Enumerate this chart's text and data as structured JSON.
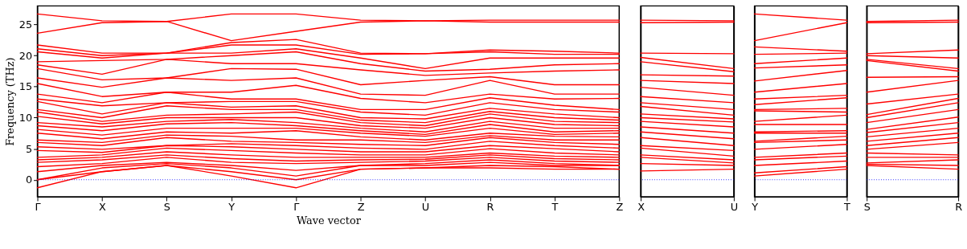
{
  "chart_data": [
    {
      "type": "line",
      "xlabel": "Wave vector",
      "ylabel": "Frequency (THz)",
      "ylim": [
        -2.75,
        28
      ],
      "yticks": [
        0,
        5,
        10,
        15,
        20,
        25
      ],
      "categories": [
        "Γ",
        "X",
        "S",
        "Y",
        "Γ",
        "Z",
        "U",
        "R",
        "T",
        "Z"
      ],
      "grid": false,
      "line_style": "solid",
      "ref_lines": [
        {
          "axis": "y",
          "value": 0,
          "color": "#0000ff",
          "line_style": "dotted"
        }
      ],
      "series": [
        {
          "color": "#ff0000",
          "values": [
            -1.3,
            1.3,
            2.3,
            0.6,
            -1.3,
            1.7,
            1.9,
            1.9,
            1.7,
            1.7
          ]
        },
        {
          "color": "#ff0000",
          "values": [
            0,
            1.3,
            2.3,
            1.3,
            0,
            1.7,
            1.9,
            2.3,
            2.1,
            1.7
          ]
        },
        {
          "color": "#ff0000",
          "values": [
            0,
            1.9,
            2.6,
            1.9,
            0.6,
            2.3,
            2.3,
            2.8,
            2.3,
            2.3
          ]
        },
        {
          "color": "#ff0000",
          "values": [
            1.3,
            2.3,
            2.8,
            2.3,
            1.5,
            2.3,
            2.6,
            3.2,
            2.6,
            2.3
          ]
        },
        {
          "color": "#ff0000",
          "values": [
            2.1,
            2.6,
            3.6,
            2.8,
            2.6,
            2.8,
            3.0,
            3.6,
            3.0,
            2.8
          ]
        },
        {
          "color": "#ff0000",
          "values": [
            2.8,
            3.2,
            4.0,
            3.4,
            3.0,
            3.2,
            3.3,
            4.0,
            3.4,
            3.2
          ]
        },
        {
          "color": "#ff0000",
          "values": [
            3.2,
            3.6,
            4.5,
            4.0,
            3.6,
            3.6,
            3.6,
            4.3,
            3.8,
            3.6
          ]
        },
        {
          "color": "#ff0000",
          "values": [
            3.6,
            4.0,
            5.1,
            4.7,
            4.3,
            4.0,
            4.0,
            5.0,
            4.3,
            4.0
          ]
        },
        {
          "color": "#ff0000",
          "values": [
            4.7,
            4.4,
            5.5,
            5.3,
            4.9,
            4.5,
            4.5,
            5.5,
            5.0,
            4.5
          ]
        },
        {
          "color": "#ff0000",
          "values": [
            5.3,
            4.9,
            5.5,
            5.8,
            5.5,
            5.1,
            4.9,
            6.2,
            5.5,
            5.1
          ]
        },
        {
          "color": "#ff0000",
          "values": [
            6.0,
            5.5,
            6.8,
            6.2,
            6.0,
            5.7,
            5.5,
            6.8,
            6.0,
            5.7
          ]
        },
        {
          "color": "#ff0000",
          "values": [
            6.4,
            6.0,
            7.2,
            7.0,
            6.4,
            6.4,
            6.0,
            7.1,
            6.4,
            6.4
          ]
        },
        {
          "color": "#ff0000",
          "values": [
            7.5,
            6.6,
            7.7,
            7.5,
            7.9,
            6.9,
            6.4,
            7.5,
            7.0,
            6.9
          ]
        },
        {
          "color": "#ff0000",
          "values": [
            8.1,
            7.2,
            8.3,
            8.3,
            8.3,
            7.5,
            7.0,
            8.3,
            7.3,
            7.5
          ]
        },
        {
          "color": "#ff0000",
          "values": [
            8.7,
            7.9,
            9.0,
            9.2,
            8.7,
            7.9,
            7.3,
            8.9,
            7.7,
            7.9
          ]
        },
        {
          "color": "#ff0000",
          "values": [
            9.2,
            8.5,
            9.4,
            9.7,
            9.2,
            8.3,
            7.7,
            9.4,
            8.3,
            8.3
          ]
        },
        {
          "color": "#ff0000",
          "values": [
            10.2,
            9.0,
            10.0,
            10.0,
            10.0,
            8.7,
            8.3,
            10.0,
            8.9,
            8.7
          ]
        },
        {
          "color": "#ff0000",
          "values": [
            10.9,
            9.4,
            10.4,
            10.6,
            10.9,
            9.2,
            8.7,
            10.6,
            9.4,
            9.2
          ]
        },
        {
          "color": "#ff0000",
          "values": [
            11.3,
            10.0,
            11.9,
            11.3,
            11.3,
            9.6,
            9.2,
            11.0,
            10.0,
            9.6
          ]
        },
        {
          "color": "#ff0000",
          "values": [
            12.6,
            10.6,
            12.4,
            11.7,
            11.9,
            10.0,
            9.8,
            11.5,
            10.6,
            10.0
          ]
        },
        {
          "color": "#ff0000",
          "values": [
            13.0,
            11.9,
            12.4,
            12.6,
            12.6,
            10.9,
            10.4,
            12.4,
            11.3,
            10.9
          ]
        },
        {
          "color": "#ff0000",
          "values": [
            13.8,
            12.4,
            14.1,
            13.0,
            13.0,
            11.3,
            11.3,
            13.2,
            12.0,
            11.3
          ]
        },
        {
          "color": "#ff0000",
          "values": [
            15.5,
            13.4,
            14.1,
            14.1,
            15.2,
            13.1,
            12.4,
            13.8,
            13.0,
            13.1
          ]
        },
        {
          "color": "#ff0000",
          "values": [
            16.4,
            14.9,
            16.4,
            16.0,
            16.4,
            13.8,
            13.6,
            16.0,
            13.8,
            13.8
          ]
        },
        {
          "color": "#ff0000",
          "values": [
            17.9,
            16.1,
            16.4,
            17.9,
            17.8,
            15.3,
            16.0,
            16.6,
            15.3,
            15.3
          ]
        },
        {
          "color": "#ff0000",
          "values": [
            18.5,
            17.0,
            19.4,
            18.7,
            18.7,
            17.7,
            16.8,
            17.2,
            17.5,
            17.7
          ]
        },
        {
          "color": "#ff0000",
          "values": [
            19.0,
            19.2,
            19.4,
            20.0,
            20.6,
            18.7,
            17.5,
            17.8,
            18.5,
            18.7
          ]
        },
        {
          "color": "#ff0000",
          "values": [
            20.6,
            19.6,
            20.4,
            20.4,
            21.1,
            19.6,
            17.9,
            19.6,
            19.6,
            19.6
          ]
        },
        {
          "color": "#ff0000",
          "values": [
            21.1,
            20.0,
            20.4,
            21.7,
            21.7,
            20.2,
            20.3,
            20.6,
            20.2,
            20.2
          ]
        },
        {
          "color": "#ff0000",
          "values": [
            21.7,
            20.4,
            20.4,
            22.1,
            22.6,
            20.4,
            20.3,
            20.9,
            20.7,
            20.4
          ]
        },
        {
          "color": "#ff0000",
          "values": [
            23.6,
            25.3,
            25.5,
            22.4,
            23.9,
            25.4,
            25.6,
            25.4,
            25.4,
            25.4
          ]
        },
        {
          "color": "#ff0000",
          "values": [
            26.7,
            25.6,
            25.5,
            26.7,
            26.7,
            25.7,
            25.6,
            25.7,
            25.7,
            25.7
          ]
        }
      ]
    },
    {
      "type": "line",
      "categories": [
        "X",
        "U"
      ],
      "ylim": [
        -2.75,
        28
      ],
      "yticks": [
        0,
        5,
        10,
        15,
        20,
        25
      ],
      "tick_labels": "x",
      "grid": "x",
      "line_style": "solid",
      "ref_lines": [
        {
          "axis": "y",
          "value": 0,
          "color": "#0000ff",
          "line_style": "dotted"
        }
      ],
      "series": [
        {
          "color": "#ff0000",
          "values": [
            1.4,
            1.7
          ]
        },
        {
          "color": "#ff0000",
          "values": [
            2.6,
            2.3
          ]
        },
        {
          "color": "#ff0000",
          "values": [
            3.6,
            2.7
          ]
        },
        {
          "color": "#ff0000",
          "values": [
            4.0,
            3.2
          ]
        },
        {
          "color": "#ff0000",
          "values": [
            5.1,
            3.8
          ]
        },
        {
          "color": "#ff0000",
          "values": [
            5.5,
            4.7
          ]
        },
        {
          "color": "#ff0000",
          "values": [
            6.8,
            5.5
          ]
        },
        {
          "color": "#ff0000",
          "values": [
            7.7,
            6.6
          ]
        },
        {
          "color": "#ff0000",
          "values": [
            8.5,
            7.5
          ]
        },
        {
          "color": "#ff0000",
          "values": [
            9.4,
            8.5
          ]
        },
        {
          "color": "#ff0000",
          "values": [
            10.0,
            9.3
          ]
        },
        {
          "color": "#ff0000",
          "values": [
            10.6,
            9.8
          ]
        },
        {
          "color": "#ff0000",
          "values": [
            11.8,
            10.4
          ]
        },
        {
          "color": "#ff0000",
          "values": [
            12.4,
            11.3
          ]
        },
        {
          "color": "#ff0000",
          "values": [
            13.4,
            12.4
          ]
        },
        {
          "color": "#ff0000",
          "values": [
            14.9,
            13.6
          ]
        },
        {
          "color": "#ff0000",
          "values": [
            16.0,
            15.5
          ]
        },
        {
          "color": "#ff0000",
          "values": [
            16.9,
            16.7
          ]
        },
        {
          "color": "#ff0000",
          "values": [
            19.0,
            17.4
          ]
        },
        {
          "color": "#ff0000",
          "values": [
            19.7,
            17.9
          ]
        },
        {
          "color": "#ff0000",
          "values": [
            20.4,
            20.3
          ]
        },
        {
          "color": "#ff0000",
          "values": [
            25.3,
            25.4
          ]
        },
        {
          "color": "#ff0000",
          "values": [
            25.7,
            25.6
          ]
        }
      ]
    },
    {
      "type": "line",
      "categories": [
        "Y",
        "T"
      ],
      "ylim": [
        -2.75,
        28
      ],
      "yticks": [
        0,
        5,
        10,
        15,
        20,
        25
      ],
      "tick_labels": "x",
      "grid": "x",
      "line_style": "solid",
      "ref_lines": [
        {
          "axis": "y",
          "value": 0,
          "color": "#0000ff",
          "line_style": "dotted"
        }
      ],
      "series": [
        {
          "color": "#ff0000",
          "values": [
            0.6,
            1.7
          ]
        },
        {
          "color": "#ff0000",
          "values": [
            1.1,
            2.1
          ]
        },
        {
          "color": "#ff0000",
          "values": [
            2.3,
            3.0
          ]
        },
        {
          "color": "#ff0000",
          "values": [
            3.2,
            3.8
          ]
        },
        {
          "color": "#ff0000",
          "values": [
            3.6,
            4.3
          ]
        },
        {
          "color": "#ff0000",
          "values": [
            4.9,
            5.7
          ]
        },
        {
          "color": "#ff0000",
          "values": [
            6.0,
            6.4
          ]
        },
        {
          "color": "#ff0000",
          "values": [
            6.2,
            7.0
          ]
        },
        {
          "color": "#ff0000",
          "values": [
            7.5,
            7.5
          ]
        },
        {
          "color": "#ff0000",
          "values": [
            7.7,
            7.9
          ]
        },
        {
          "color": "#ff0000",
          "values": [
            8.9,
            8.9
          ]
        },
        {
          "color": "#ff0000",
          "values": [
            9.4,
            10.4
          ]
        },
        {
          "color": "#ff0000",
          "values": [
            11.1,
            10.9
          ]
        },
        {
          "color": "#ff0000",
          "values": [
            11.3,
            11.5
          ]
        },
        {
          "color": "#ff0000",
          "values": [
            12.1,
            13.2
          ]
        },
        {
          "color": "#ff0000",
          "values": [
            13.0,
            13.6
          ]
        },
        {
          "color": "#ff0000",
          "values": [
            14.1,
            15.5
          ]
        },
        {
          "color": "#ff0000",
          "values": [
            15.9,
            17.6
          ]
        },
        {
          "color": "#ff0000",
          "values": [
            18.0,
            18.5
          ]
        },
        {
          "color": "#ff0000",
          "values": [
            18.7,
            19.6
          ]
        },
        {
          "color": "#ff0000",
          "values": [
            20.2,
            20.4
          ]
        },
        {
          "color": "#ff0000",
          "values": [
            21.4,
            20.7
          ]
        },
        {
          "color": "#ff0000",
          "values": [
            22.4,
            25.3
          ]
        },
        {
          "color": "#ff0000",
          "values": [
            26.7,
            25.7
          ]
        }
      ]
    },
    {
      "type": "line",
      "categories": [
        "S",
        "R"
      ],
      "ylim": [
        -2.75,
        28
      ],
      "yticks": [
        0,
        5,
        10,
        15,
        20,
        25
      ],
      "tick_labels": "x",
      "grid": "x",
      "line_style": "solid",
      "ref_lines": [
        {
          "axis": "y",
          "value": 0,
          "color": "#0000ff",
          "line_style": "dotted"
        }
      ],
      "series": [
        {
          "color": "#ff0000",
          "values": [
            2.3,
            1.7
          ]
        },
        {
          "color": "#ff0000",
          "values": [
            2.5,
            2.3
          ]
        },
        {
          "color": "#ff0000",
          "values": [
            2.7,
            3.2
          ]
        },
        {
          "color": "#ff0000",
          "values": [
            3.6,
            3.6
          ]
        },
        {
          "color": "#ff0000",
          "values": [
            4.3,
            4.0
          ]
        },
        {
          "color": "#ff0000",
          "values": [
            4.9,
            6.0
          ]
        },
        {
          "color": "#ff0000",
          "values": [
            5.5,
            6.8
          ]
        },
        {
          "color": "#ff0000",
          "values": [
            6.2,
            7.5
          ]
        },
        {
          "color": "#ff0000",
          "values": [
            6.9,
            8.3
          ]
        },
        {
          "color": "#ff0000",
          "values": [
            7.6,
            9.2
          ]
        },
        {
          "color": "#ff0000",
          "values": [
            8.1,
            10.1
          ]
        },
        {
          "color": "#ff0000",
          "values": [
            9.2,
            11.3
          ]
        },
        {
          "color": "#ff0000",
          "values": [
            10.0,
            12.4
          ]
        },
        {
          "color": "#ff0000",
          "values": [
            10.5,
            13.1
          ]
        },
        {
          "color": "#ff0000",
          "values": [
            12.2,
            13.8
          ]
        },
        {
          "color": "#ff0000",
          "values": [
            14.1,
            16.0
          ]
        },
        {
          "color": "#ff0000",
          "values": [
            16.5,
            16.6
          ]
        },
        {
          "color": "#ff0000",
          "values": [
            19.2,
            17.5
          ]
        },
        {
          "color": "#ff0000",
          "values": [
            19.4,
            17.9
          ]
        },
        {
          "color": "#ff0000",
          "values": [
            20.0,
            19.6
          ]
        },
        {
          "color": "#ff0000",
          "values": [
            20.3,
            20.9
          ]
        },
        {
          "color": "#ff0000",
          "values": [
            25.3,
            25.4
          ]
        },
        {
          "color": "#ff0000",
          "values": [
            25.5,
            25.7
          ]
        }
      ]
    }
  ]
}
